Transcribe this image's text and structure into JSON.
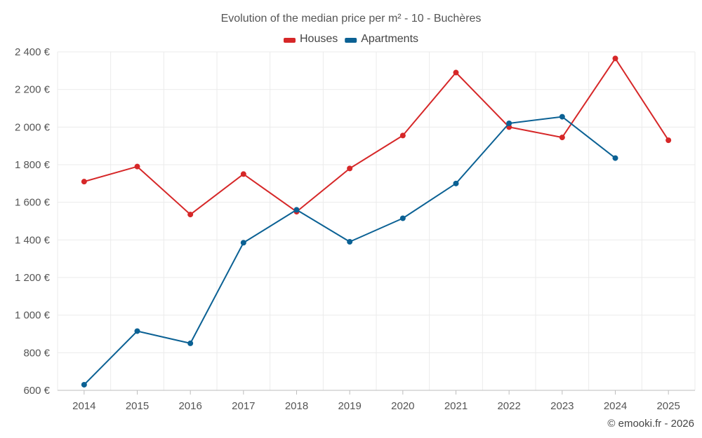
{
  "chart_data": {
    "type": "line",
    "title": "Evolution of the median price per m² - 10 - Buchères",
    "categories": [
      "2014",
      "2015",
      "2016",
      "2017",
      "2018",
      "2019",
      "2020",
      "2021",
      "2022",
      "2023",
      "2024",
      "2025"
    ],
    "series": [
      {
        "name": "Houses",
        "color": "#d62728",
        "values": [
          1710,
          1790,
          1535,
          1750,
          1550,
          1780,
          1955,
          2290,
          2000,
          1945,
          2365,
          1930
        ]
      },
      {
        "name": "Apartments",
        "color": "#0b6194",
        "values": [
          630,
          915,
          850,
          1385,
          1560,
          1390,
          1515,
          1700,
          2020,
          2055,
          1835,
          null
        ]
      }
    ],
    "ylim": [
      600,
      2400
    ],
    "yticks": [
      600,
      800,
      1000,
      1200,
      1400,
      1600,
      1800,
      2000,
      2200,
      2400
    ],
    "ytick_labels": [
      "600 €",
      "800 €",
      "1 000 €",
      "1 200 €",
      "1 400 €",
      "1 600 €",
      "1 800 €",
      "2 000 €",
      "2 200 €",
      "2 400 €"
    ],
    "xlabel": "",
    "ylabel": "",
    "grid": true,
    "legend_position": "top-center",
    "credit": "© emooki.fr - 2026"
  }
}
